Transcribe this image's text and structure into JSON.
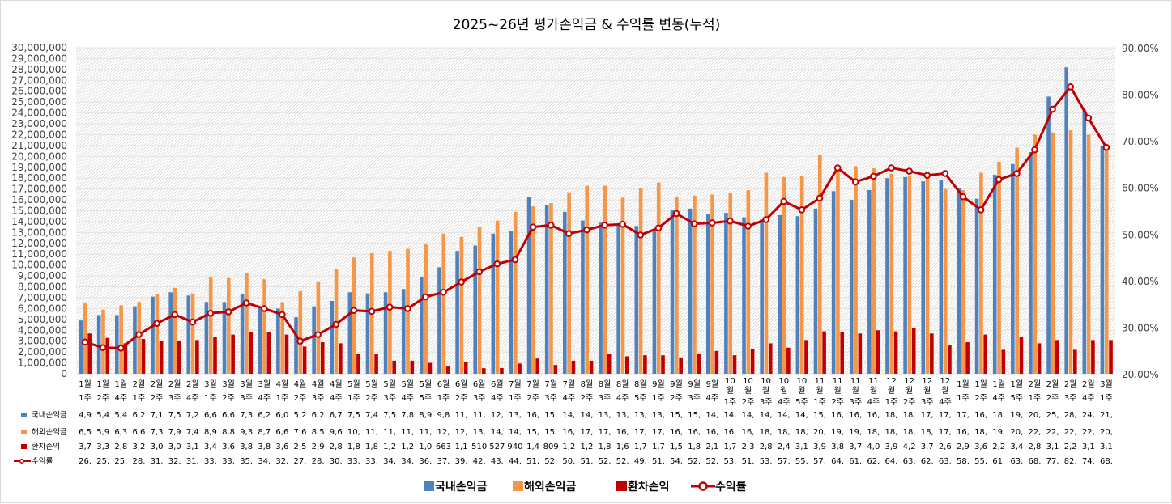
{
  "chart_data": {
    "type": "bar",
    "title": "2025~26년 평가손익금 & 수익률 변동(누적)",
    "ylim": [
      0,
      30000000
    ],
    "y2lim": [
      20,
      90
    ],
    "yticks": [
      "30,000,000",
      "29,000,000",
      "28,000,000",
      "27,000,000",
      "26,000,000",
      "25,000,000",
      "24,000,000",
      "23,000,000",
      "22,000,000",
      "21,000,000",
      "20,000,000",
      "19,000,000",
      "18,000,000",
      "17,000,000",
      "16,000,000",
      "15,000,000",
      "14,000,000",
      "13,000,000",
      "12,000,000",
      "11,000,000",
      "10,000,000",
      "9,000,000",
      "8,000,000",
      "7,000,000",
      "6,000,000",
      "5,000,000",
      "4,000,000",
      "3,000,000",
      "2,000,000",
      "1,000,000",
      "0"
    ],
    "y2ticks": [
      "90.00%",
      "80.00%",
      "70.00%",
      "60.00%",
      "50.00%",
      "40.00%",
      "30.00%",
      "20.00%"
    ],
    "grid": true,
    "legend_position": "bottom",
    "categories": [
      [
        "1월",
        "1주"
      ],
      [
        "1월",
        "2주"
      ],
      [
        "1월",
        "4주"
      ],
      [
        "2월",
        "1주"
      ],
      [
        "2월",
        "2주"
      ],
      [
        "2월",
        "3주"
      ],
      [
        "2월",
        "4주"
      ],
      [
        "3월",
        "1주"
      ],
      [
        "3월",
        "2주"
      ],
      [
        "3월",
        "3주"
      ],
      [
        "3월",
        "4주"
      ],
      [
        "4월",
        "1주"
      ],
      [
        "4월",
        "2주"
      ],
      [
        "4월",
        "3주"
      ],
      [
        "4월",
        "4주"
      ],
      [
        "5월",
        "1주"
      ],
      [
        "5월",
        "2주"
      ],
      [
        "5월",
        "3주"
      ],
      [
        "5월",
        "4주"
      ],
      [
        "5월",
        "5주"
      ],
      [
        "6월",
        "1주"
      ],
      [
        "6월",
        "2주"
      ],
      [
        "6월",
        "3주"
      ],
      [
        "6월",
        "4주"
      ],
      [
        "7월",
        "1주"
      ],
      [
        "7월",
        "2주"
      ],
      [
        "7월",
        "3주"
      ],
      [
        "7월",
        "4주"
      ],
      [
        "8월",
        "2주"
      ],
      [
        "8월",
        "3주"
      ],
      [
        "8월",
        "4주"
      ],
      [
        "8월",
        "5주"
      ],
      [
        "9월",
        "1주"
      ],
      [
        "9월",
        "2주"
      ],
      [
        "9월",
        "3주"
      ],
      [
        "9월",
        "4주"
      ],
      [
        "10월",
        "1주"
      ],
      [
        "10월",
        "2주"
      ],
      [
        "10월",
        "3주"
      ],
      [
        "10월",
        "4주"
      ],
      [
        "10월",
        "5주"
      ],
      [
        "11월",
        "1주"
      ],
      [
        "11월",
        "2주"
      ],
      [
        "11월",
        "3주"
      ],
      [
        "11월",
        "4주"
      ],
      [
        "12월",
        "1주"
      ],
      [
        "12월",
        "2주"
      ],
      [
        "12월",
        "3주"
      ],
      [
        "12월",
        "4주"
      ],
      [
        "1월",
        "1주"
      ],
      [
        "1월",
        "2주"
      ],
      [
        "1월",
        "4주"
      ],
      [
        "1월",
        "5주"
      ],
      [
        "2월",
        "1주"
      ],
      [
        "2월",
        "2주"
      ],
      [
        "2월",
        "3주"
      ],
      [
        "2월",
        "4주"
      ],
      [
        "3월",
        "1주"
      ]
    ],
    "series": [
      {
        "name": "국내손익금",
        "type": "bar",
        "color": "#4f81bd",
        "values": [
          4900000,
          5400000,
          5400000,
          6200000,
          7100000,
          7500000,
          7200000,
          6600000,
          6600000,
          7300000,
          6200000,
          6000000,
          5200000,
          6200000,
          6700000,
          7500000,
          7400000,
          7500000,
          7800000,
          8900000,
          9800000,
          11300000,
          11800000,
          12900000,
          13100000,
          16300000,
          15500000,
          14900000,
          14100000,
          13900000,
          13800000,
          13600000,
          13100000,
          15100000,
          15200000,
          14700000,
          14800000,
          14400000,
          14200000,
          14600000,
          14500000,
          15200000,
          16800000,
          16000000,
          16900000,
          18000000,
          18100000,
          17700000,
          17800000,
          17100000,
          16100000,
          18300000,
          19300000,
          20400000,
          25500000,
          28200000,
          24300000,
          21000000
        ]
      },
      {
        "name": "해외손익금",
        "type": "bar",
        "color": "#f79646",
        "values": [
          6500000,
          5900000,
          6300000,
          6600000,
          7300000,
          7900000,
          7400000,
          8900000,
          8800000,
          9300000,
          8700000,
          6600000,
          7600000,
          8500000,
          9600000,
          10700000,
          11100000,
          11300000,
          11500000,
          11900000,
          12900000,
          12600000,
          13500000,
          14100000,
          14900000,
          15400000,
          15700000,
          16700000,
          17300000,
          17300000,
          16200000,
          17100000,
          17600000,
          16300000,
          16400000,
          16500000,
          16600000,
          16900000,
          18500000,
          18100000,
          18200000,
          20100000,
          19100000,
          19100000,
          18900000,
          18400000,
          18200000,
          18300000,
          17000000,
          16900000,
          18500000,
          19500000,
          20800000,
          22000000,
          22200000,
          22400000,
          22000000,
          20900000
        ]
      },
      {
        "name": "환차손익",
        "type": "bar",
        "color": "#c00000",
        "values": [
          3700000,
          3300000,
          2800000,
          3200000,
          3000000,
          3000000,
          3100000,
          3400000,
          3600000,
          3800000,
          3800000,
          3600000,
          2500000,
          2900000,
          2800000,
          1800000,
          1800000,
          1200000,
          1200000,
          1000000,
          663000,
          1100000,
          510000,
          527000,
          940000,
          1400000,
          809000,
          1200000,
          1200000,
          1800000,
          1600000,
          1700000,
          1700000,
          1500000,
          1800000,
          2100000,
          1700000,
          2300000,
          2800000,
          2400000,
          3100000,
          3900000,
          3800000,
          3700000,
          4000000,
          3900000,
          4200000,
          3700000,
          2600000,
          2900000,
          3600000,
          2200000,
          3400000,
          2800000,
          3100000,
          2200000,
          3100000,
          3100000
        ]
      },
      {
        "name": "수익률",
        "type": "line",
        "color": "#c00000",
        "axis": "right",
        "values": [
          26.8,
          25.6,
          25.5,
          28.4,
          30.8,
          32.7,
          31.1,
          33.0,
          33.3,
          35.2,
          34.0,
          32.7,
          27.0,
          28.4,
          30.6,
          33.6,
          33.4,
          34.3,
          34.0,
          36.5,
          37.5,
          39.7,
          41.9,
          43.6,
          44.5,
          51.5,
          51.9,
          50.1,
          50.9,
          51.9,
          52.1,
          49.8,
          51.3,
          54.4,
          52.2,
          52.4,
          52.8,
          51.7,
          53.1,
          57.0,
          55.2,
          57.7,
          64.2,
          61.2,
          62.4,
          64.2,
          63.5,
          62.6,
          63.0,
          58.0,
          55.2,
          61.7,
          63.0,
          68.1,
          76.8,
          81.6,
          74.9,
          68.6
        ]
      }
    ],
    "table_rows": [
      {
        "label": "국내손익금",
        "cells": [
          "4,9",
          "5,4",
          "5,4",
          "6,2",
          "7,1",
          "7,5",
          "7,2",
          "6,6",
          "6,6",
          "7,3",
          "6,2",
          "6,0",
          "5,2",
          "6,2",
          "6,7",
          "7,5",
          "7,4",
          "7,5",
          "7,8",
          "8,9",
          "9,8",
          "11,",
          "11,",
          "12,",
          "13,",
          "16,",
          "15,",
          "14,",
          "14,",
          "13,",
          "13,",
          "13,",
          "13,",
          "15,",
          "15,",
          "14,",
          "14,",
          "14,",
          "14,",
          "14,",
          "14,",
          "15,",
          "16,",
          "16,",
          "16,",
          "18,",
          "18,",
          "17,",
          "17,",
          "17,",
          "16,",
          "18,",
          "19,",
          "20,",
          "25,",
          "28,",
          "24,",
          "21,"
        ]
      },
      {
        "label": "해외손익금",
        "cells": [
          "6,5",
          "5,9",
          "6,3",
          "6,6",
          "7,3",
          "7,9",
          "7,4",
          "8,9",
          "8,8",
          "9,3",
          "8,7",
          "6,6",
          "7,6",
          "8,5",
          "9,6",
          "10,",
          "11,",
          "11,",
          "11,",
          "11,",
          "12,",
          "12,",
          "13,",
          "14,",
          "14,",
          "15,",
          "15,",
          "16,",
          "17,",
          "17,",
          "16,",
          "17,",
          "17,",
          "16,",
          "16,",
          "16,",
          "16,",
          "16,",
          "18,",
          "18,",
          "18,",
          "20,",
          "19,",
          "19,",
          "18,",
          "18,",
          "18,",
          "18,",
          "17,",
          "16,",
          "18,",
          "19,",
          "20,",
          "22,",
          "22,",
          "22,",
          "22,",
          "20,"
        ]
      },
      {
        "label": "환차손익",
        "cells": [
          "3,7",
          "3,3",
          "2,8",
          "3,2",
          "3,0",
          "3,0",
          "3,1",
          "3,4",
          "3,6",
          "3,8",
          "3,8",
          "3,6",
          "2,5",
          "2,9",
          "2,8",
          "1,8",
          "1,8",
          "1,2",
          "1,2",
          "1,0",
          "663",
          "1,1",
          "510",
          "527",
          "940",
          "1,4",
          "809",
          "1,2",
          "1,2",
          "1,8",
          "1,6",
          "1,7",
          "1,7",
          "1,5",
          "1,8",
          "2,1",
          "1,7",
          "2,3",
          "2,8",
          "2,4",
          "3,1",
          "3,9",
          "3,8",
          "3,7",
          "4,0",
          "3,9",
          "4,2",
          "3,7",
          "2,6",
          "2,9",
          "3,6",
          "2,2",
          "3,4",
          "2,8",
          "3,1",
          "2,2",
          "3,1",
          "3,1"
        ]
      },
      {
        "label": "수익률",
        "cells": [
          "26.",
          "25.",
          "25.",
          "28.",
          "31.",
          "32.",
          "31.",
          "33.",
          "33.",
          "35.",
          "34.",
          "32.",
          "27.",
          "28.",
          "30.",
          "33.",
          "33.",
          "34.",
          "34.",
          "36.",
          "37.",
          "39.",
          "42.",
          "43.",
          "44.",
          "51.",
          "52.",
          "50.",
          "51.",
          "52.",
          "52.",
          "49.",
          "51.",
          "54.",
          "52.",
          "52.",
          "53.",
          "51.",
          "53.",
          "57.",
          "55.",
          "57.",
          "64.",
          "61.",
          "62.",
          "64.",
          "63.",
          "62.",
          "63.",
          "58.",
          "55.",
          "61.",
          "63.",
          "68.",
          "77.",
          "82.",
          "74.",
          "68."
        ]
      }
    ]
  }
}
